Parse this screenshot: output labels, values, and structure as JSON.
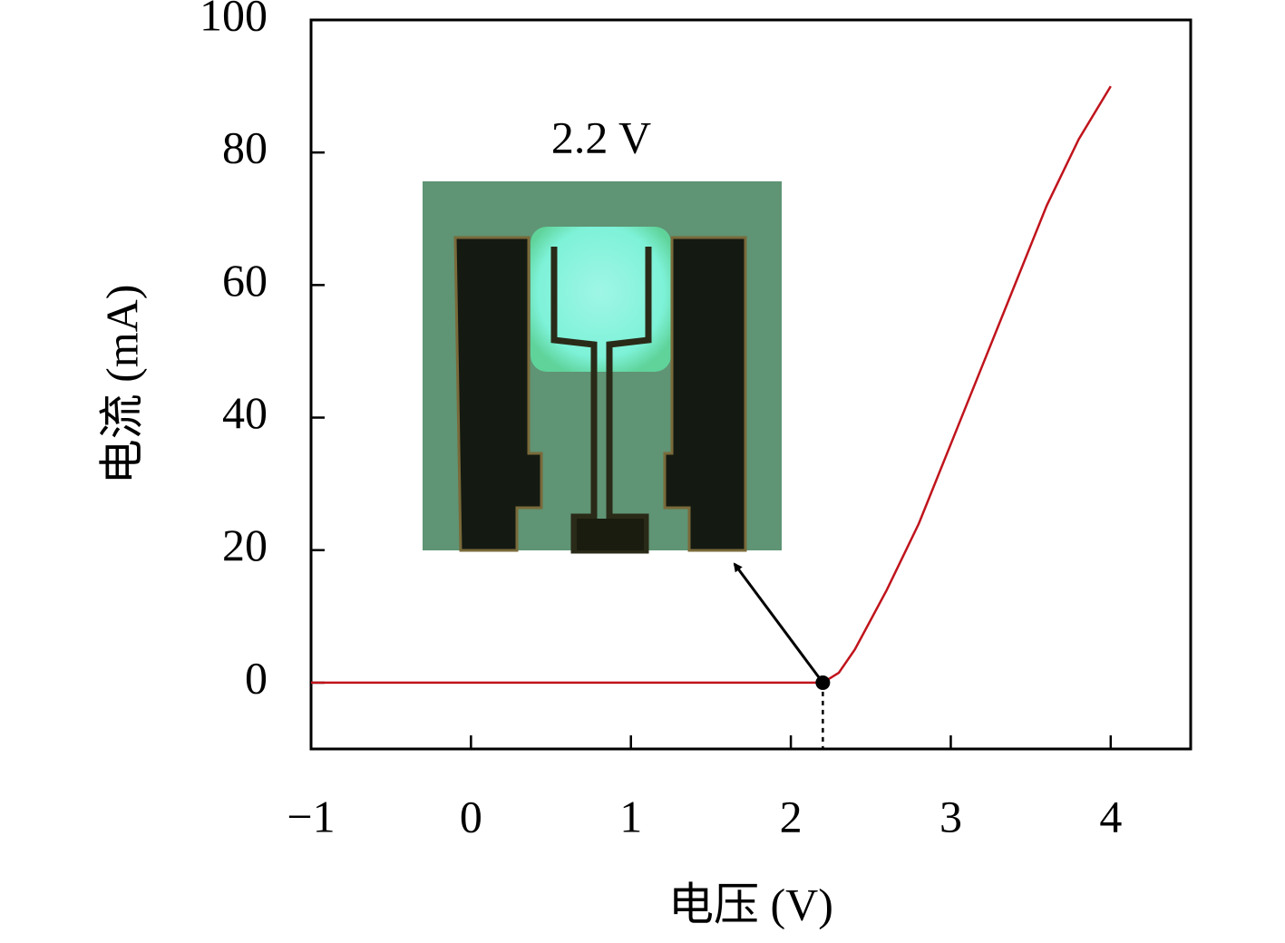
{
  "chart_data": {
    "type": "line",
    "xlabel": "电压 (V)",
    "ylabel": "电流 (mA)",
    "x": [
      -1,
      0,
      1,
      2,
      2.2,
      2.3,
      2.4,
      2.5,
      2.6,
      2.7,
      2.8,
      3.0,
      3.2,
      3.4,
      3.6,
      3.8,
      4.0
    ],
    "values": [
      0,
      0,
      0,
      0,
      0,
      1.5,
      5,
      9.5,
      14,
      19,
      24,
      36,
      48,
      60,
      72,
      82,
      90
    ],
    "color": "#c0141c",
    "xlim": [
      -1,
      4.5
    ],
    "ylim": [
      -10,
      100
    ],
    "xticks": [
      {
        "value": -1,
        "label": "−1"
      },
      0,
      1,
      2,
      3,
      4
    ],
    "yticks": [
      0,
      20,
      40,
      60,
      80,
      100
    ],
    "annotation": {
      "text": "2.2 V",
      "x": 2.2,
      "y": 0
    }
  }
}
